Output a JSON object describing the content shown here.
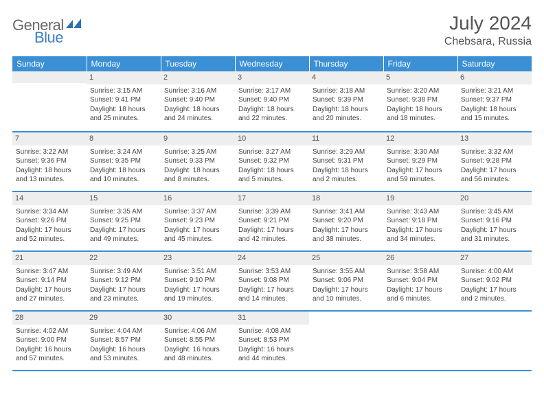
{
  "brand": {
    "name_a": "General",
    "name_b": "Blue",
    "icon_color": "#2f6fb0"
  },
  "title": {
    "month_year": "July 2024",
    "location": "Chebsara, Russia"
  },
  "colors": {
    "header_bg": "#3b8fd4",
    "header_text": "#ffffff",
    "daynum_bg": "#eeeeee",
    "sep": "#3b8fd4"
  },
  "weekdays": [
    "Sunday",
    "Monday",
    "Tuesday",
    "Wednesday",
    "Thursday",
    "Friday",
    "Saturday"
  ],
  "weeks": [
    [
      null,
      {
        "n": "1",
        "sr": "Sunrise: 3:15 AM",
        "ss": "Sunset: 9:41 PM",
        "dl": "Daylight: 18 hours and 25 minutes."
      },
      {
        "n": "2",
        "sr": "Sunrise: 3:16 AM",
        "ss": "Sunset: 9:40 PM",
        "dl": "Daylight: 18 hours and 24 minutes."
      },
      {
        "n": "3",
        "sr": "Sunrise: 3:17 AM",
        "ss": "Sunset: 9:40 PM",
        "dl": "Daylight: 18 hours and 22 minutes."
      },
      {
        "n": "4",
        "sr": "Sunrise: 3:18 AM",
        "ss": "Sunset: 9:39 PM",
        "dl": "Daylight: 18 hours and 20 minutes."
      },
      {
        "n": "5",
        "sr": "Sunrise: 3:20 AM",
        "ss": "Sunset: 9:38 PM",
        "dl": "Daylight: 18 hours and 18 minutes."
      },
      {
        "n": "6",
        "sr": "Sunrise: 3:21 AM",
        "ss": "Sunset: 9:37 PM",
        "dl": "Daylight: 18 hours and 15 minutes."
      }
    ],
    [
      {
        "n": "7",
        "sr": "Sunrise: 3:22 AM",
        "ss": "Sunset: 9:36 PM",
        "dl": "Daylight: 18 hours and 13 minutes."
      },
      {
        "n": "8",
        "sr": "Sunrise: 3:24 AM",
        "ss": "Sunset: 9:35 PM",
        "dl": "Daylight: 18 hours and 10 minutes."
      },
      {
        "n": "9",
        "sr": "Sunrise: 3:25 AM",
        "ss": "Sunset: 9:33 PM",
        "dl": "Daylight: 18 hours and 8 minutes."
      },
      {
        "n": "10",
        "sr": "Sunrise: 3:27 AM",
        "ss": "Sunset: 9:32 PM",
        "dl": "Daylight: 18 hours and 5 minutes."
      },
      {
        "n": "11",
        "sr": "Sunrise: 3:29 AM",
        "ss": "Sunset: 9:31 PM",
        "dl": "Daylight: 18 hours and 2 minutes."
      },
      {
        "n": "12",
        "sr": "Sunrise: 3:30 AM",
        "ss": "Sunset: 9:29 PM",
        "dl": "Daylight: 17 hours and 59 minutes."
      },
      {
        "n": "13",
        "sr": "Sunrise: 3:32 AM",
        "ss": "Sunset: 9:28 PM",
        "dl": "Daylight: 17 hours and 56 minutes."
      }
    ],
    [
      {
        "n": "14",
        "sr": "Sunrise: 3:34 AM",
        "ss": "Sunset: 9:26 PM",
        "dl": "Daylight: 17 hours and 52 minutes."
      },
      {
        "n": "15",
        "sr": "Sunrise: 3:35 AM",
        "ss": "Sunset: 9:25 PM",
        "dl": "Daylight: 17 hours and 49 minutes."
      },
      {
        "n": "16",
        "sr": "Sunrise: 3:37 AM",
        "ss": "Sunset: 9:23 PM",
        "dl": "Daylight: 17 hours and 45 minutes."
      },
      {
        "n": "17",
        "sr": "Sunrise: 3:39 AM",
        "ss": "Sunset: 9:21 PM",
        "dl": "Daylight: 17 hours and 42 minutes."
      },
      {
        "n": "18",
        "sr": "Sunrise: 3:41 AM",
        "ss": "Sunset: 9:20 PM",
        "dl": "Daylight: 17 hours and 38 minutes."
      },
      {
        "n": "19",
        "sr": "Sunrise: 3:43 AM",
        "ss": "Sunset: 9:18 PM",
        "dl": "Daylight: 17 hours and 34 minutes."
      },
      {
        "n": "20",
        "sr": "Sunrise: 3:45 AM",
        "ss": "Sunset: 9:16 PM",
        "dl": "Daylight: 17 hours and 31 minutes."
      }
    ],
    [
      {
        "n": "21",
        "sr": "Sunrise: 3:47 AM",
        "ss": "Sunset: 9:14 PM",
        "dl": "Daylight: 17 hours and 27 minutes."
      },
      {
        "n": "22",
        "sr": "Sunrise: 3:49 AM",
        "ss": "Sunset: 9:12 PM",
        "dl": "Daylight: 17 hours and 23 minutes."
      },
      {
        "n": "23",
        "sr": "Sunrise: 3:51 AM",
        "ss": "Sunset: 9:10 PM",
        "dl": "Daylight: 17 hours and 19 minutes."
      },
      {
        "n": "24",
        "sr": "Sunrise: 3:53 AM",
        "ss": "Sunset: 9:08 PM",
        "dl": "Daylight: 17 hours and 14 minutes."
      },
      {
        "n": "25",
        "sr": "Sunrise: 3:55 AM",
        "ss": "Sunset: 9:06 PM",
        "dl": "Daylight: 17 hours and 10 minutes."
      },
      {
        "n": "26",
        "sr": "Sunrise: 3:58 AM",
        "ss": "Sunset: 9:04 PM",
        "dl": "Daylight: 17 hours and 6 minutes."
      },
      {
        "n": "27",
        "sr": "Sunrise: 4:00 AM",
        "ss": "Sunset: 9:02 PM",
        "dl": "Daylight: 17 hours and 2 minutes."
      }
    ],
    [
      {
        "n": "28",
        "sr": "Sunrise: 4:02 AM",
        "ss": "Sunset: 9:00 PM",
        "dl": "Daylight: 16 hours and 57 minutes."
      },
      {
        "n": "29",
        "sr": "Sunrise: 4:04 AM",
        "ss": "Sunset: 8:57 PM",
        "dl": "Daylight: 16 hours and 53 minutes."
      },
      {
        "n": "30",
        "sr": "Sunrise: 4:06 AM",
        "ss": "Sunset: 8:55 PM",
        "dl": "Daylight: 16 hours and 48 minutes."
      },
      {
        "n": "31",
        "sr": "Sunrise: 4:08 AM",
        "ss": "Sunset: 8:53 PM",
        "dl": "Daylight: 16 hours and 44 minutes."
      },
      null,
      null,
      null
    ]
  ]
}
